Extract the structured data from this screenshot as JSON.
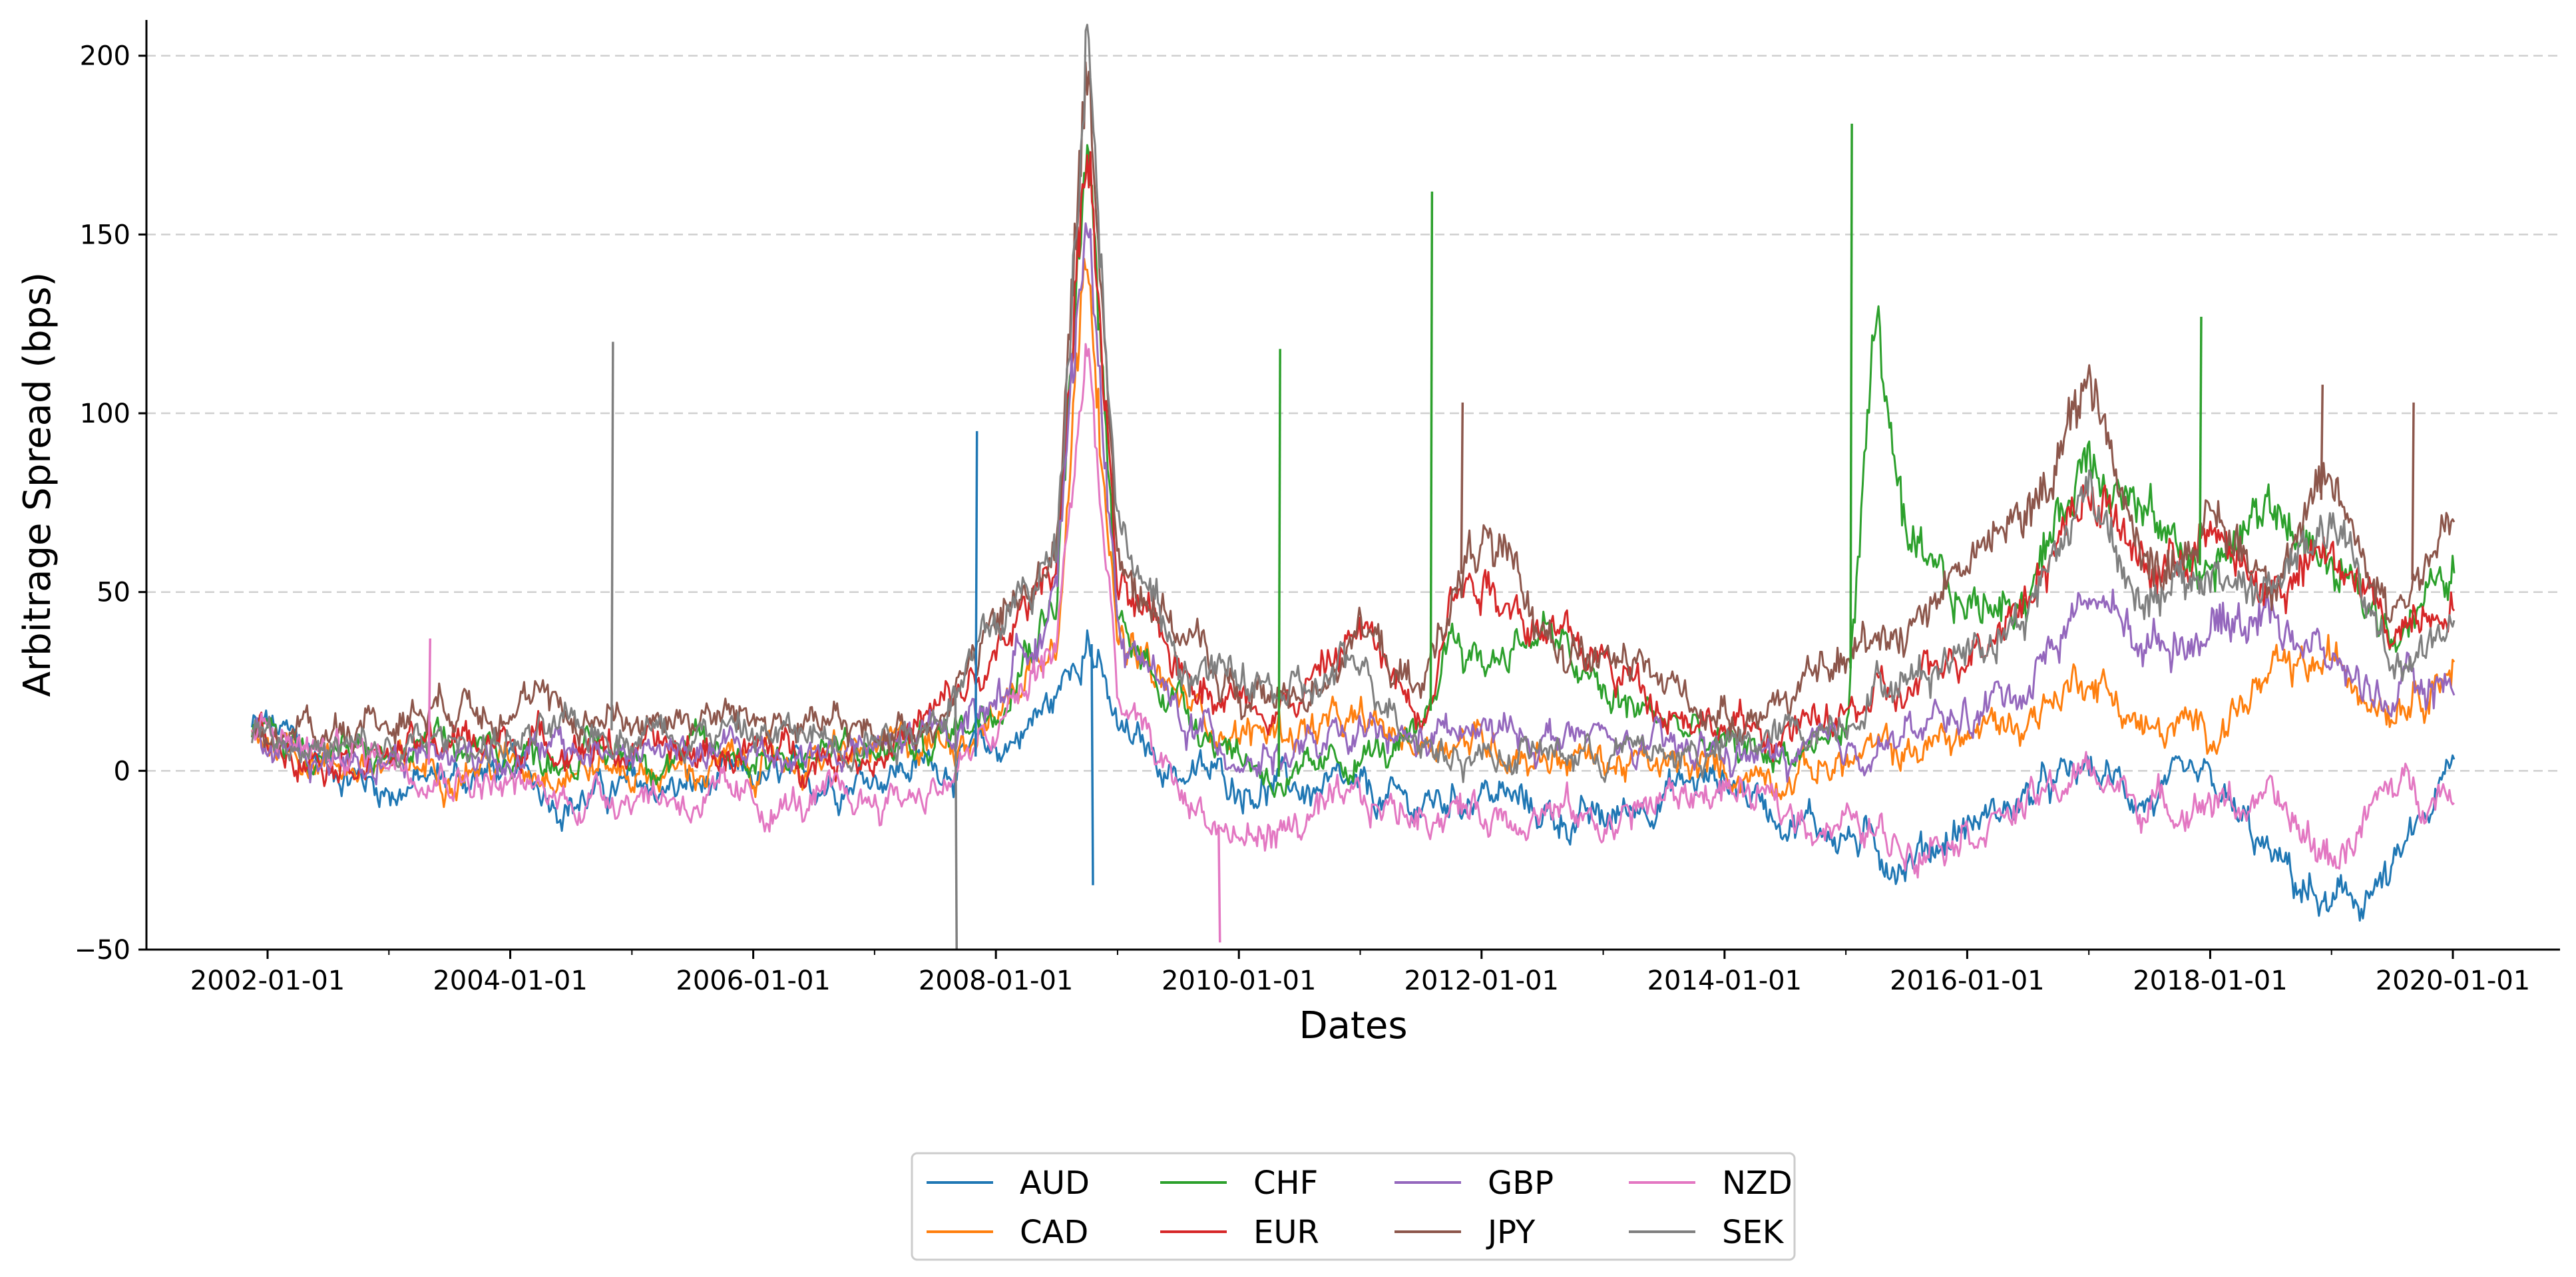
{
  "chart_data": {
    "type": "line",
    "title": "",
    "xlabel": "Dates",
    "ylabel": "Arbitrage Spread (bps)",
    "xlim": [
      "2001-01-01",
      "2021-01-01"
    ],
    "ylim": [
      -50,
      210
    ],
    "x_ticks": [
      "2002-01-01",
      "2004-01-01",
      "2006-01-01",
      "2008-01-01",
      "2010-01-01",
      "2012-01-01",
      "2014-01-01",
      "2016-01-01",
      "2018-01-01",
      "2020-01-01"
    ],
    "y_ticks": [
      -50,
      0,
      50,
      100,
      150,
      200
    ],
    "grid": "y dashed",
    "legend_position": "bottom-center",
    "legend_columns": 4,
    "x": [
      "2002-01-01",
      "2002-07-01",
      "2003-01-01",
      "2003-07-01",
      "2004-01-01",
      "2004-07-01",
      "2005-01-01",
      "2005-07-01",
      "2006-01-01",
      "2006-07-01",
      "2007-01-01",
      "2007-07-01",
      "2008-01-01",
      "2008-07-01",
      "2008-10-01",
      "2009-01-01",
      "2009-07-01",
      "2010-01-01",
      "2010-07-01",
      "2011-01-01",
      "2011-07-01",
      "2011-10-01",
      "2012-01-01",
      "2012-07-01",
      "2013-01-01",
      "2013-07-01",
      "2014-01-01",
      "2014-07-01",
      "2015-01-01",
      "2015-04-01",
      "2015-07-01",
      "2016-01-01",
      "2016-07-01",
      "2017-01-01",
      "2017-07-01",
      "2018-01-01",
      "2018-07-01",
      "2019-01-01",
      "2019-07-01",
      "2020-01-01"
    ],
    "series": [
      {
        "name": "AUD",
        "color": "#1f77b4",
        "values": [
          12,
          2,
          -5,
          -2,
          0,
          -8,
          -5,
          -5,
          -3,
          -3,
          0,
          2,
          5,
          20,
          40,
          10,
          0,
          -3,
          -5,
          -8,
          -10,
          -8,
          -5,
          -12,
          -15,
          -5,
          -2,
          -12,
          -18,
          -22,
          -25,
          -15,
          -8,
          0,
          -8,
          -5,
          -25,
          -40,
          -30,
          0
        ]
      },
      {
        "name": "CAD",
        "color": "#ff7f0e",
        "values": [
          10,
          3,
          0,
          2,
          2,
          2,
          0,
          0,
          2,
          3,
          5,
          8,
          15,
          40,
          150,
          35,
          20,
          10,
          12,
          12,
          8,
          10,
          8,
          5,
          3,
          0,
          0,
          0,
          2,
          5,
          5,
          10,
          15,
          28,
          10,
          12,
          25,
          30,
          20,
          30
        ]
      },
      {
        "name": "CHF",
        "color": "#2ca02c",
        "values": [
          10,
          5,
          3,
          5,
          5,
          5,
          5,
          5,
          5,
          5,
          5,
          8,
          20,
          50,
          180,
          40,
          20,
          5,
          -5,
          5,
          5,
          40,
          30,
          40,
          20,
          15,
          5,
          5,
          10,
          130,
          60,
          45,
          50,
          90,
          70,
          55,
          75,
          55,
          40,
          55
        ]
      },
      {
        "name": "EUR",
        "color": "#d62728",
        "values": [
          10,
          5,
          5,
          8,
          8,
          8,
          5,
          5,
          5,
          5,
          5,
          15,
          30,
          60,
          180,
          50,
          30,
          20,
          20,
          40,
          15,
          50,
          55,
          40,
          30,
          20,
          12,
          10,
          15,
          20,
          20,
          35,
          50,
          80,
          55,
          65,
          50,
          60,
          40,
          50
        ]
      },
      {
        "name": "GBP",
        "color": "#9467bd",
        "values": [
          8,
          3,
          5,
          5,
          5,
          5,
          5,
          5,
          5,
          5,
          5,
          10,
          20,
          50,
          160,
          40,
          15,
          5,
          5,
          8,
          8,
          10,
          10,
          10,
          8,
          5,
          5,
          3,
          5,
          8,
          10,
          15,
          25,
          50,
          35,
          40,
          45,
          30,
          20,
          25
        ]
      },
      {
        "name": "JPY",
        "color": "#8c564b",
        "values": [
          10,
          12,
          15,
          20,
          20,
          15,
          15,
          15,
          15,
          12,
          10,
          15,
          40,
          60,
          200,
          60,
          40,
          20,
          20,
          40,
          20,
          50,
          65,
          40,
          30,
          25,
          15,
          20,
          30,
          40,
          40,
          60,
          70,
          110,
          55,
          70,
          55,
          80,
          45,
          70
        ]
      },
      {
        "name": "NZD",
        "color": "#e377c2",
        "values": [
          10,
          5,
          5,
          0,
          -5,
          -8,
          -5,
          -8,
          -10,
          -10,
          -8,
          -5,
          10,
          35,
          120,
          20,
          -5,
          -20,
          -15,
          -10,
          -12,
          -10,
          -12,
          -10,
          -15,
          -8,
          -5,
          -12,
          -15,
          -18,
          -20,
          -15,
          -10,
          0,
          -10,
          -8,
          -10,
          -25,
          -5,
          -5
        ]
      },
      {
        "name": "SEK",
        "color": "#7f7f7f",
        "values": [
          12,
          5,
          5,
          8,
          8,
          10,
          12,
          12,
          10,
          10,
          10,
          15,
          40,
          60,
          210,
          70,
          30,
          25,
          20,
          30,
          10,
          5,
          5,
          5,
          5,
          5,
          5,
          10,
          15,
          25,
          25,
          35,
          45,
          80,
          45,
          55,
          50,
          70,
          30,
          40
        ]
      }
    ],
    "spikes": [
      {
        "series": "SEK",
        "x": "2004-11-01",
        "value": 120
      },
      {
        "series": "SEK",
        "x": "2007-09-01",
        "value": -50
      },
      {
        "series": "AUD",
        "x": "2007-11-01",
        "value": 95
      },
      {
        "series": "CHF",
        "x": "2010-05-01",
        "value": 118
      },
      {
        "series": "CHF",
        "x": "2011-08-01",
        "value": 162
      },
      {
        "series": "JPY",
        "x": "2011-11-01",
        "value": 103
      },
      {
        "series": "CHF",
        "x": "2015-01-15",
        "value": 181
      },
      {
        "series": "CHF",
        "x": "2017-12-01",
        "value": 127
      },
      {
        "series": "JPY",
        "x": "2019-09-01",
        "value": 103
      },
      {
        "series": "JPY",
        "x": "2018-12-01",
        "value": 108
      },
      {
        "series": "NZD",
        "x": "2003-05-01",
        "value": 37
      },
      {
        "series": "AUD",
        "x": "2008-10-15",
        "value": -32
      },
      {
        "series": "NZD",
        "x": "2009-11-01",
        "value": -48
      }
    ]
  }
}
